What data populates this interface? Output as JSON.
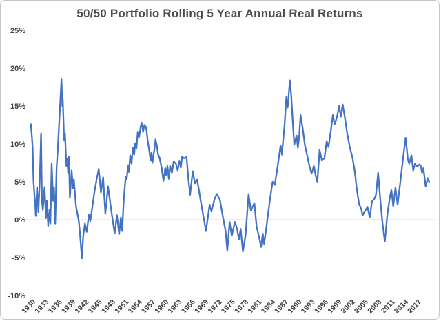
{
  "title": "50/50 Portfolio Rolling 5 Year Annual Real Returns",
  "colors": {
    "line": "#4472C4",
    "gridline": "#d9d9d9",
    "axis_text": "#3f3f3f",
    "title_text": "#4d4d4d",
    "border": "#c6c6c6",
    "background": "#ffffff"
  },
  "chart_data": {
    "type": "line",
    "title": "50/50 Portfolio Rolling 5 Year Annual Real Returns",
    "xlabel": "",
    "ylabel": "",
    "legend": "none",
    "grid": "zero-line-only",
    "xlim": [
      1929.3,
      2019.6
    ],
    "ylim": [
      -10,
      25
    ],
    "x_ticks": [
      1930,
      1933,
      1936,
      1939,
      1942,
      1945,
      1948,
      1951,
      1954,
      1957,
      1960,
      1963,
      1966,
      1969,
      1972,
      1975,
      1978,
      1981,
      1984,
      1987,
      1990,
      1993,
      1996,
      1999,
      2002,
      2005,
      2008,
      2011,
      2014,
      2017
    ],
    "y_ticks": [
      "25%",
      "20%",
      "15%",
      "10%",
      "5%",
      "0%",
      "-5%",
      "-10%"
    ],
    "y_tick_values": [
      25,
      20,
      15,
      10,
      5,
      0,
      -5,
      -10
    ],
    "series": [
      {
        "name": "50/50 portfolio rolling 5-year annual real return (%)",
        "points": [
          [
            1929.5,
            12.6
          ],
          [
            1929.7,
            11.2
          ],
          [
            1929.9,
            9.5
          ],
          [
            1930.1,
            5.2
          ],
          [
            1930.4,
            2.5
          ],
          [
            1930.5,
            1.8
          ],
          [
            1930.6,
            0.5
          ],
          [
            1930.9,
            4.3
          ],
          [
            1931.2,
            1.0
          ],
          [
            1931.5,
            5.2
          ],
          [
            1931.8,
            11.4
          ],
          [
            1932.0,
            2.5
          ],
          [
            1932.2,
            1.3
          ],
          [
            1932.6,
            4.3
          ],
          [
            1932.9,
            0.2
          ],
          [
            1933.1,
            2.5
          ],
          [
            1933.4,
            -0.8
          ],
          [
            1933.7,
            1.3
          ],
          [
            1933.9,
            -0.5
          ],
          [
            1934.2,
            7.4
          ],
          [
            1934.5,
            2.5
          ],
          [
            1934.7,
            4.3
          ],
          [
            1935.0,
            -0.5
          ],
          [
            1935.3,
            6.8
          ],
          [
            1935.6,
            9.5
          ],
          [
            1935.9,
            13.0
          ],
          [
            1936.1,
            15.2
          ],
          [
            1936.4,
            18.6
          ],
          [
            1936.6,
            15.0
          ],
          [
            1936.7,
            15.9
          ],
          [
            1937.0,
            10.5
          ],
          [
            1937.2,
            11.4
          ],
          [
            1937.5,
            7.1
          ],
          [
            1937.7,
            8.0
          ],
          [
            1937.9,
            6.2
          ],
          [
            1938.1,
            8.3
          ],
          [
            1938.3,
            2.9
          ],
          [
            1938.7,
            6.5
          ],
          [
            1939.0,
            4.1
          ],
          [
            1939.2,
            5.3
          ],
          [
            1939.7,
            1.7
          ],
          [
            1940.3,
            -0.1
          ],
          [
            1940.6,
            -2.0
          ],
          [
            1941.0,
            -5.1
          ],
          [
            1941.3,
            -2.2
          ],
          [
            1941.7,
            -0.5
          ],
          [
            1942.1,
            -1.6
          ],
          [
            1942.6,
            0.7
          ],
          [
            1942.9,
            -0.2
          ],
          [
            1943.3,
            1.4
          ],
          [
            1943.8,
            3.5
          ],
          [
            1944.3,
            5.2
          ],
          [
            1944.8,
            6.7
          ],
          [
            1945.3,
            3.6
          ],
          [
            1945.8,
            5.6
          ],
          [
            1946.3,
            0.8
          ],
          [
            1946.9,
            4.4
          ],
          [
            1947.5,
            1.8
          ],
          [
            1948.0,
            -0.3
          ],
          [
            1948.4,
            -1.8
          ],
          [
            1948.9,
            0.6
          ],
          [
            1949.4,
            -1.9
          ],
          [
            1949.8,
            0.3
          ],
          [
            1950.1,
            -1.5
          ],
          [
            1950.4,
            2.2
          ],
          [
            1950.7,
            4.4
          ],
          [
            1950.9,
            5.7
          ],
          [
            1951.1,
            5.3
          ],
          [
            1951.4,
            7.1
          ],
          [
            1951.6,
            6.3
          ],
          [
            1951.9,
            8.5
          ],
          [
            1952.2,
            7.4
          ],
          [
            1952.5,
            9.5
          ],
          [
            1952.8,
            8.6
          ],
          [
            1953.0,
            10.1
          ],
          [
            1953.3,
            9.4
          ],
          [
            1953.6,
            11.6
          ],
          [
            1953.9,
            10.9
          ],
          [
            1954.3,
            12.4
          ],
          [
            1954.5,
            12.8
          ],
          [
            1954.8,
            11.6
          ],
          [
            1955.1,
            12.5
          ],
          [
            1955.5,
            12.2
          ],
          [
            1955.8,
            10.6
          ],
          [
            1956.1,
            9.5
          ],
          [
            1956.5,
            7.8
          ],
          [
            1956.7,
            8.9
          ],
          [
            1956.9,
            7.5
          ],
          [
            1957.4,
            9.5
          ],
          [
            1957.6,
            10.6
          ],
          [
            1957.9,
            9.8
          ],
          [
            1958.2,
            8.6
          ],
          [
            1958.5,
            8.2
          ],
          [
            1959.0,
            6.8
          ],
          [
            1959.4,
            5.1
          ],
          [
            1959.8,
            6.8
          ],
          [
            1960.0,
            5.9
          ],
          [
            1960.3,
            7.1
          ],
          [
            1960.6,
            5.4
          ],
          [
            1960.9,
            7.1
          ],
          [
            1961.3,
            6.2
          ],
          [
            1961.7,
            7.7
          ],
          [
            1962.2,
            7.4
          ],
          [
            1962.6,
            6.5
          ],
          [
            1963.0,
            7.8
          ],
          [
            1963.3,
            6.9
          ],
          [
            1963.6,
            8.3
          ],
          [
            1964.1,
            8.1
          ],
          [
            1964.6,
            8.3
          ],
          [
            1965.0,
            5.5
          ],
          [
            1965.4,
            3.3
          ],
          [
            1966.0,
            6.4
          ],
          [
            1966.5,
            4.8
          ],
          [
            1967.0,
            5.3
          ],
          [
            1967.7,
            2.8
          ],
          [
            1968.3,
            0.8
          ],
          [
            1969.0,
            -1.5
          ],
          [
            1969.8,
            2.0
          ],
          [
            1970.2,
            1.1
          ],
          [
            1970.9,
            2.7
          ],
          [
            1971.4,
            3.4
          ],
          [
            1972.1,
            2.7
          ],
          [
            1972.8,
            0.4
          ],
          [
            1973.4,
            -1.5
          ],
          [
            1973.8,
            -4.1
          ],
          [
            1974.3,
            -0.3
          ],
          [
            1974.8,
            -2.1
          ],
          [
            1975.5,
            -0.3
          ],
          [
            1976.0,
            -1.2
          ],
          [
            1976.4,
            -2.6
          ],
          [
            1976.8,
            -1.2
          ],
          [
            1977.3,
            -4.2
          ],
          [
            1977.9,
            -2.1
          ],
          [
            1978.6,
            3.4
          ],
          [
            1979.1,
            1.2
          ],
          [
            1979.9,
            2.2
          ],
          [
            1980.4,
            -0.9
          ],
          [
            1981.0,
            -2.4
          ],
          [
            1981.4,
            -3.6
          ],
          [
            1981.8,
            -1.8
          ],
          [
            1982.1,
            -3.2
          ],
          [
            1982.7,
            -0.6
          ],
          [
            1983.3,
            2.2
          ],
          [
            1984.0,
            5.0
          ],
          [
            1984.5,
            4.6
          ],
          [
            1985.1,
            6.9
          ],
          [
            1985.8,
            9.8
          ],
          [
            1986.1,
            8.6
          ],
          [
            1986.7,
            12.5
          ],
          [
            1987.1,
            16.2
          ],
          [
            1987.4,
            14.8
          ],
          [
            1987.9,
            18.4
          ],
          [
            1988.2,
            16.5
          ],
          [
            1988.6,
            12.5
          ],
          [
            1988.9,
            9.9
          ],
          [
            1989.4,
            11.1
          ],
          [
            1989.7,
            9.5
          ],
          [
            1990.0,
            11.0
          ],
          [
            1990.3,
            13.8
          ],
          [
            1990.8,
            12.0
          ],
          [
            1991.3,
            9.8
          ],
          [
            1991.8,
            8.5
          ],
          [
            1992.3,
            7.1
          ],
          [
            1992.8,
            6.1
          ],
          [
            1993.3,
            7.1
          ],
          [
            1993.7,
            5.9
          ],
          [
            1994.1,
            5.0
          ],
          [
            1994.6,
            9.2
          ],
          [
            1995.1,
            7.9
          ],
          [
            1995.7,
            8.1
          ],
          [
            1996.2,
            10.4
          ],
          [
            1996.6,
            9.6
          ],
          [
            1997.0,
            11.2
          ],
          [
            1997.6,
            13.8
          ],
          [
            1998.0,
            12.6
          ],
          [
            1998.5,
            13.5
          ],
          [
            1999.0,
            15.0
          ],
          [
            1999.4,
            13.6
          ],
          [
            1999.8,
            15.2
          ],
          [
            2000.3,
            13.5
          ],
          [
            2000.8,
            11.5
          ],
          [
            2001.4,
            9.6
          ],
          [
            2002.0,
            8.2
          ],
          [
            2002.5,
            6.5
          ],
          [
            2003.0,
            4.0
          ],
          [
            2003.5,
            2.1
          ],
          [
            2004.0,
            1.4
          ],
          [
            2004.3,
            0.6
          ],
          [
            2004.9,
            1.2
          ],
          [
            2005.4,
            1.7
          ],
          [
            2005.9,
            0.3
          ],
          [
            2006.4,
            2.4
          ],
          [
            2007.0,
            2.8
          ],
          [
            2007.3,
            3.3
          ],
          [
            2007.8,
            6.2
          ],
          [
            2008.3,
            2.5
          ],
          [
            2008.8,
            -0.5
          ],
          [
            2009.3,
            -2.9
          ],
          [
            2009.9,
            0.8
          ],
          [
            2010.5,
            3.2
          ],
          [
            2010.8,
            3.9
          ],
          [
            2011.2,
            1.8
          ],
          [
            2011.7,
            4.2
          ],
          [
            2012.2,
            2.0
          ],
          [
            2012.8,
            5.0
          ],
          [
            2013.4,
            8.0
          ],
          [
            2014.0,
            10.8
          ],
          [
            2014.5,
            8.0
          ],
          [
            2014.8,
            7.4
          ],
          [
            2015.3,
            8.5
          ],
          [
            2015.7,
            6.5
          ],
          [
            2016.1,
            7.4
          ],
          [
            2016.6,
            7.0
          ],
          [
            2017.1,
            7.3
          ],
          [
            2017.4,
            7.1
          ],
          [
            2017.7,
            6.2
          ],
          [
            2018.0,
            6.8
          ],
          [
            2018.5,
            4.4
          ],
          [
            2019.0,
            5.5
          ],
          [
            2019.3,
            5.0
          ]
        ]
      }
    ]
  }
}
